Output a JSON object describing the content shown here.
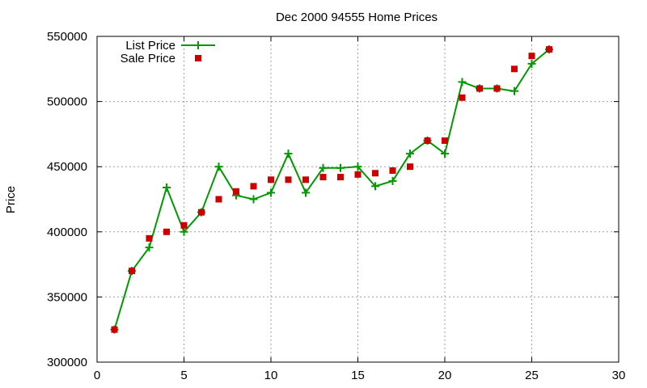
{
  "chart_data": {
    "type": "line",
    "title": "Dec 2000 94555 Home Prices",
    "xlabel": "",
    "ylabel": "Price",
    "xlim": [
      0,
      30
    ],
    "ylim": [
      300000,
      550000
    ],
    "xticks": [
      0,
      5,
      10,
      15,
      20,
      25,
      30
    ],
    "yticks": [
      300000,
      350000,
      400000,
      450000,
      500000,
      550000
    ],
    "grid": true,
    "legend_position": "top-left",
    "series": [
      {
        "name": "List Price",
        "type": "line",
        "marker": "plus",
        "color": "#009900",
        "x": [
          1,
          2,
          3,
          4,
          5,
          6,
          7,
          8,
          9,
          10,
          11,
          12,
          13,
          14,
          15,
          16,
          17,
          18,
          19,
          20,
          21,
          22,
          23,
          24,
          25,
          26
        ],
        "y": [
          325000,
          370000,
          388000,
          434000,
          400000,
          415000,
          450000,
          428000,
          425000,
          430000,
          460000,
          430000,
          449000,
          449000,
          450000,
          435000,
          439000,
          460000,
          470000,
          460000,
          515000,
          510000,
          510000,
          508000,
          529000,
          540000
        ]
      },
      {
        "name": "Sale Price",
        "type": "scatter",
        "marker": "square",
        "color": "#cc0000",
        "x": [
          1,
          2,
          3,
          4,
          5,
          6,
          7,
          8,
          9,
          10,
          11,
          12,
          13,
          14,
          15,
          16,
          17,
          18,
          19,
          20,
          21,
          22,
          23,
          24,
          25,
          26
        ],
        "y": [
          325000,
          370000,
          395000,
          400000,
          405000,
          415000,
          425000,
          431000,
          435000,
          440000,
          440000,
          440000,
          442000,
          442000,
          444000,
          445000,
          447000,
          450000,
          470000,
          470000,
          503000,
          510000,
          510000,
          525000,
          535000,
          540000
        ]
      }
    ]
  }
}
